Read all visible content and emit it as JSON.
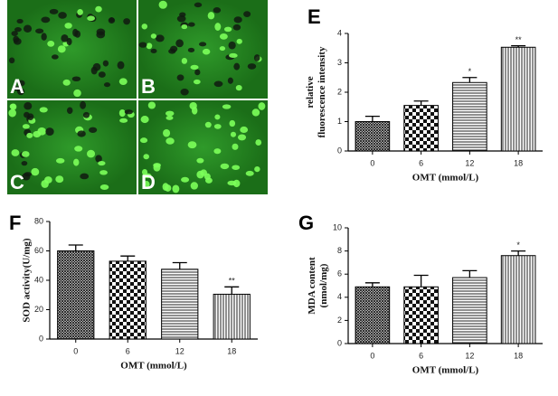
{
  "image_panels": {
    "labels": [
      "A",
      "B",
      "C",
      "D"
    ]
  },
  "chart_data": [
    {
      "type": "bar",
      "label": "E",
      "categories": [
        "0",
        "6",
        "12",
        "18"
      ],
      "values": [
        1.0,
        1.55,
        2.33,
        3.53
      ],
      "errors": [
        0.18,
        0.15,
        0.17,
        0.05
      ],
      "annotations": [
        null,
        null,
        "*",
        "**"
      ],
      "xlabel": "OMT (mmol/L)",
      "ylabel": [
        "relative",
        "fluorescence intensity"
      ],
      "ylim": [
        0,
        4
      ],
      "yticks": [
        0,
        1,
        2,
        3,
        4
      ]
    },
    {
      "type": "bar",
      "label": "F",
      "categories": [
        "0",
        "6",
        "12",
        "18"
      ],
      "values": [
        60,
        53,
        47.5,
        30.5
      ],
      "errors": [
        4,
        3.5,
        4.5,
        5
      ],
      "annotations": [
        null,
        null,
        null,
        "**"
      ],
      "xlabel": "OMT (mmol/L)",
      "ylabel": [
        "SOD activity(U/mg)"
      ],
      "ylim": [
        0,
        80
      ],
      "yticks": [
        0,
        20,
        40,
        60,
        80
      ]
    },
    {
      "type": "bar",
      "label": "G",
      "categories": [
        "0",
        "6",
        "12",
        "18"
      ],
      "values": [
        4.9,
        4.9,
        5.7,
        7.6
      ],
      "errors": [
        0.35,
        1.0,
        0.6,
        0.4
      ],
      "annotations": [
        null,
        null,
        null,
        "*"
      ],
      "xlabel": "OMT (mmol/L)",
      "ylabel": [
        "MDA content",
        "(nmol/mg)"
      ],
      "ylim": [
        0,
        10
      ],
      "yticks": [
        0,
        2,
        4,
        6,
        8,
        10
      ]
    }
  ]
}
